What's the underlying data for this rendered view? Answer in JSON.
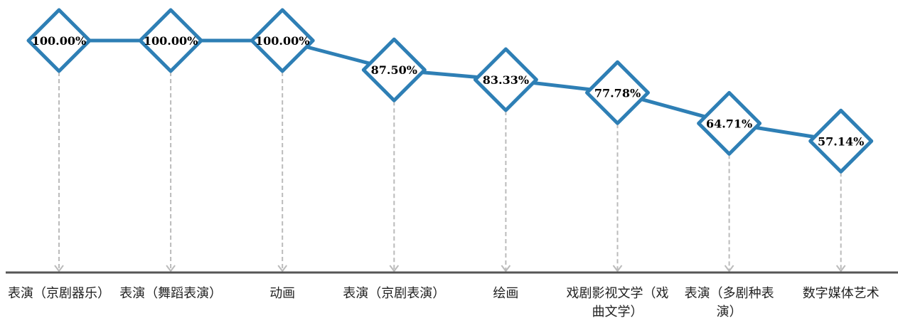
{
  "chart_data": {
    "type": "line",
    "categories": [
      "表演（京剧器乐）",
      "表演（舞蹈表演）",
      "动画",
      "表演（京剧表演）",
      "绘画",
      "戏剧影视文学（戏曲文学）",
      "表演（多剧种表演）",
      "数字媒体艺术"
    ],
    "values": [
      100.0,
      100.0,
      100.0,
      87.5,
      83.33,
      77.78,
      64.71,
      57.14
    ],
    "data_labels": [
      "100.00%",
      "100.00%",
      "100.00%",
      "87.50%",
      "83.33%",
      "77.78%",
      "64.71%",
      "57.14%"
    ],
    "ylim": [
      0,
      100
    ],
    "grid": false,
    "legend": "none",
    "marker": "diamond",
    "colors": {
      "line": "#2e7fb5",
      "marker_fill": "#ffffff",
      "drop_line": "#bbbbbb",
      "axis": "#555555",
      "label": "#000000"
    }
  }
}
